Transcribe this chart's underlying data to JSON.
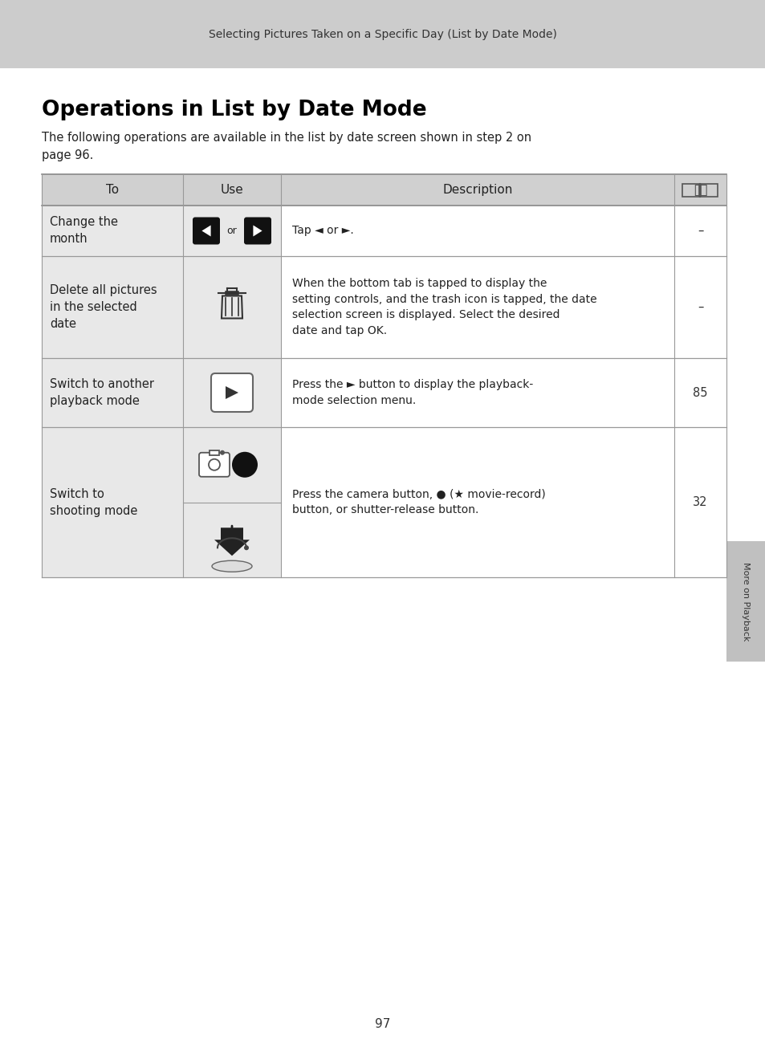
{
  "page_bg": "#ffffff",
  "header_bg": "#cccccc",
  "header_text": "Selecting Pictures Taken on a Specific Day (List by Date Mode)",
  "header_text_color": "#333333",
  "title": "Operations in List by Date Mode",
  "title_color": "#000000",
  "intro_line1": "The following operations are available in the list by date screen shown in step 2 on",
  "intro_line2": "page 96.",
  "intro_color": "#222222",
  "sidebar_bg": "#c0c0c0",
  "sidebar_text": "More on Playback",
  "sidebar_text_color": "#333333",
  "page_number": "97",
  "table_header_bg": "#d0d0d0",
  "table_col_bg": "#e8e8e8",
  "table_border_color": "#999999",
  "col_to_label": "To",
  "col_use_label": "Use",
  "col_desc_label": "Description",
  "rows": [
    {
      "to": "Change the\nmonth",
      "desc": "Tap ◄ or ►.",
      "ref": "–"
    },
    {
      "to": "Delete all pictures\nin the selected\ndate",
      "desc": "When the bottom tab is tapped to display the\nsetting controls, and the trash icon is tapped, the date\nselection screen is displayed. Select the desired\ndate and tap OK.",
      "ref": "–"
    },
    {
      "to": "Switch to another\nplayback mode",
      "desc": "Press the ► button to display the playback-\nmode selection menu.",
      "ref": "85"
    },
    {
      "to": "Switch to\nshooting mode",
      "desc": "Press the camera button, ● (★ movie-record)\nbutton, or shutter-release button.",
      "ref": "32"
    }
  ]
}
